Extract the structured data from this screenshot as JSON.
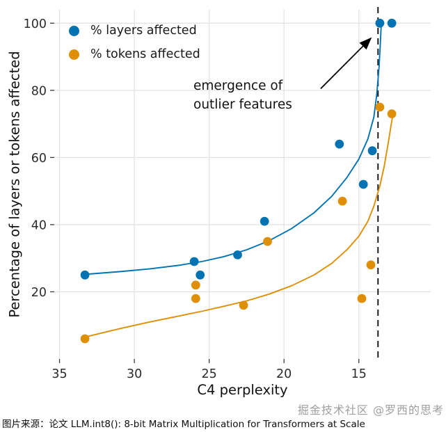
{
  "chart_data": {
    "type": "scatter",
    "title": "",
    "xlabel": "C4 perplexity",
    "ylabel": "Percentage of layers or tokens affected",
    "x_axis_reversed": true,
    "xlim": [
      35.35,
      10.2
    ],
    "ylim": [
      0,
      104
    ],
    "xticks": [
      35,
      30,
      25,
      20,
      15
    ],
    "yticks": [
      20,
      40,
      60,
      80,
      100
    ],
    "grid": true,
    "legend_position": "upper left",
    "dashed_line_x": 13.72,
    "series": [
      {
        "name": "% layers affected",
        "color": "#0173b2",
        "points": [
          [
            33.3,
            25
          ],
          [
            26.0,
            29
          ],
          [
            25.6,
            25
          ],
          [
            23.1,
            31
          ],
          [
            21.3,
            41
          ],
          [
            16.3,
            64
          ],
          [
            14.7,
            52
          ],
          [
            14.1,
            62
          ],
          [
            13.6,
            100
          ],
          [
            12.8,
            100
          ]
        ],
        "trend": [
          [
            33.3,
            25.2
          ],
          [
            31,
            26
          ],
          [
            29,
            26.8
          ],
          [
            27,
            27.9
          ],
          [
            25.5,
            29
          ],
          [
            24,
            30.5
          ],
          [
            22.5,
            32.5
          ],
          [
            21,
            35.2
          ],
          [
            19.5,
            38.8
          ],
          [
            18,
            43.5
          ],
          [
            16.8,
            48.5
          ],
          [
            15.8,
            54
          ],
          [
            15,
            59.5
          ],
          [
            14.4,
            65.5
          ],
          [
            14,
            72
          ],
          [
            13.8,
            79
          ],
          [
            13.65,
            87
          ],
          [
            13.55,
            95
          ],
          [
            13.5,
            100
          ]
        ]
      },
      {
        "name": "% tokens affected",
        "color": "#de8f05",
        "points": [
          [
            33.3,
            6
          ],
          [
            25.9,
            22
          ],
          [
            25.9,
            18
          ],
          [
            22.7,
            16
          ],
          [
            21.1,
            35
          ],
          [
            16.1,
            47
          ],
          [
            14.8,
            18
          ],
          [
            14.2,
            28
          ],
          [
            13.6,
            75
          ],
          [
            12.8,
            73
          ]
        ],
        "trend": [
          [
            33.3,
            6.5
          ],
          [
            31,
            9
          ],
          [
            29,
            11
          ],
          [
            27,
            12.8
          ],
          [
            25.5,
            14.2
          ],
          [
            24,
            15.7
          ],
          [
            22.5,
            17.3
          ],
          [
            21,
            19.3
          ],
          [
            19.5,
            21.8
          ],
          [
            18,
            25
          ],
          [
            16.8,
            28.5
          ],
          [
            15.8,
            32.5
          ],
          [
            15,
            36.5
          ],
          [
            14.4,
            41
          ],
          [
            14,
            45.5
          ],
          [
            13.6,
            51.5
          ],
          [
            13.3,
            57.5
          ],
          [
            13.05,
            64
          ],
          [
            12.85,
            69.5
          ],
          [
            12.7,
            73.5
          ]
        ]
      }
    ],
    "annotation": {
      "text": "emergence of\noutlier features",
      "arrow": {
        "from": {
          "x": 17.55,
          "y": 80.5
        },
        "to": {
          "x": 14.2,
          "y": 95.5
        }
      }
    },
    "colors": {
      "grid": "#e3e3e3",
      "tick_text": "#2b2b2b",
      "tick_mark": "#3a3a3a",
      "dashed_line": "#111111",
      "arrow": "#000000"
    }
  },
  "caption": {
    "text": "图片来源：论文 LLM.int8(): 8-bit Matrix Multiplication for Transformers at Scale"
  },
  "watermark": {
    "text": "掘金技术社区 @罗西的思考"
  }
}
